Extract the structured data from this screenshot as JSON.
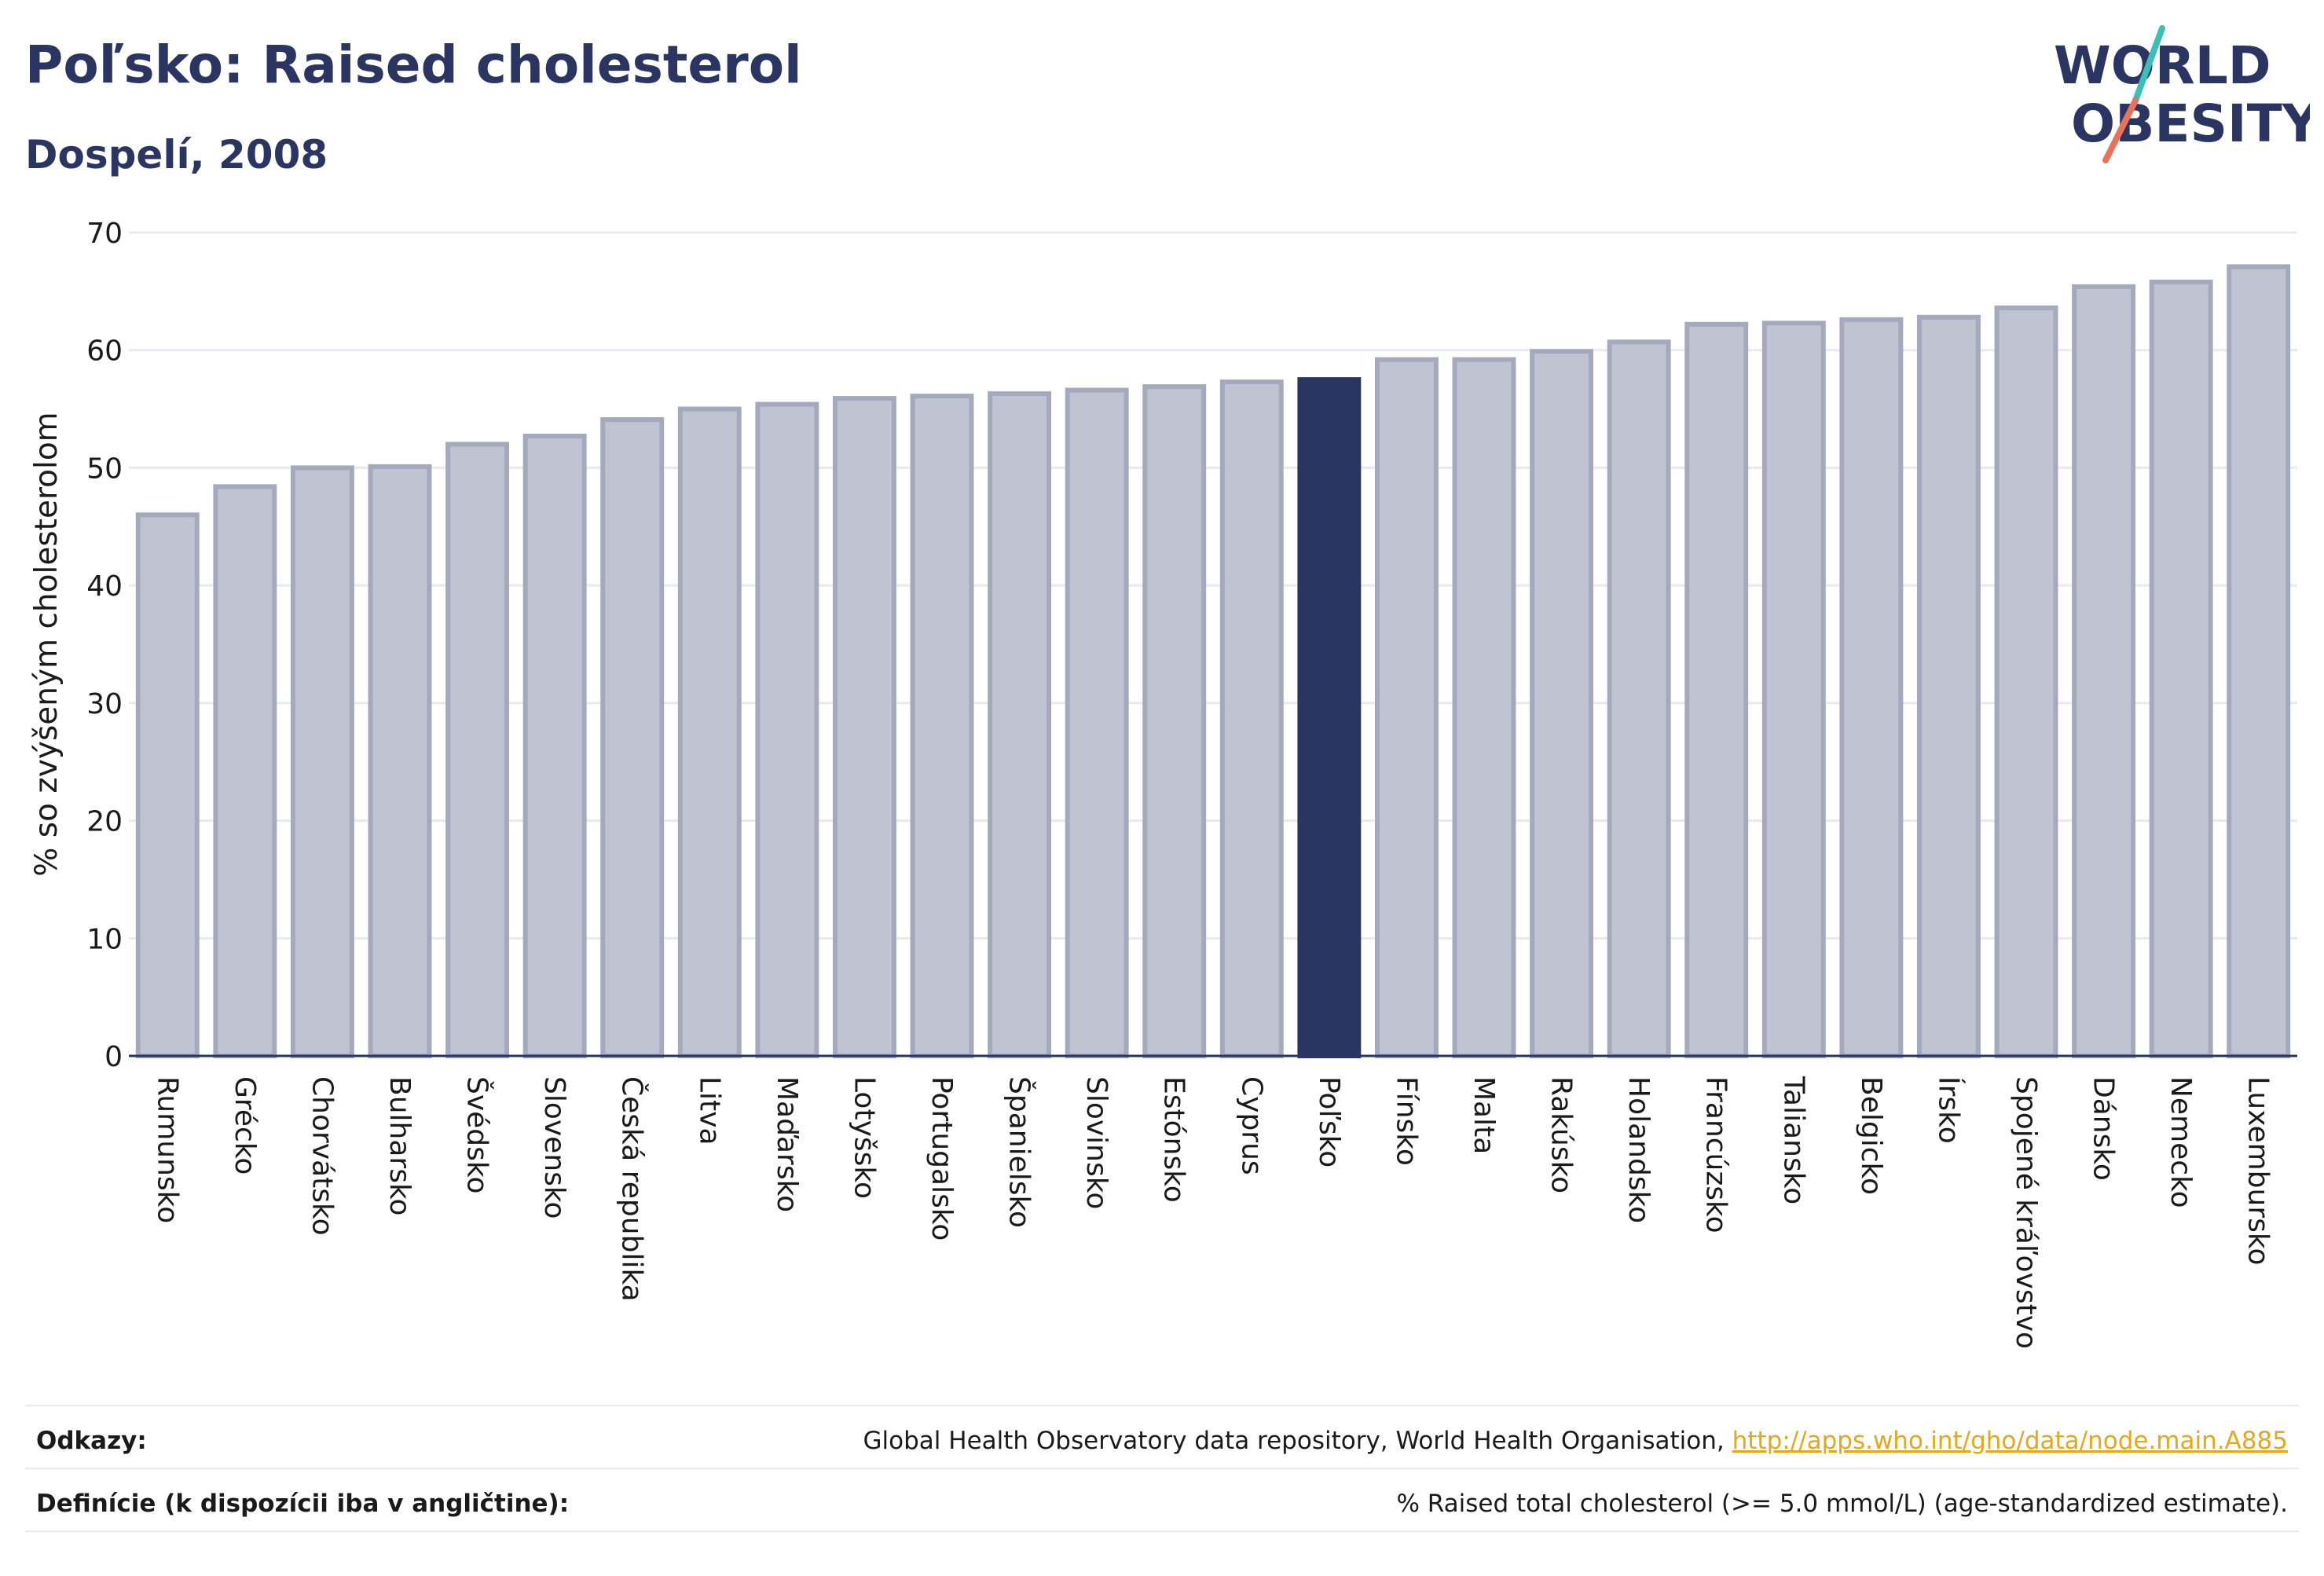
{
  "header": {
    "title": "Poľsko: Raised cholesterol",
    "subtitle": "Dospelí, 2008"
  },
  "logo": {
    "line1": "WORLD",
    "line2": "OBESITY"
  },
  "colors": {
    "bar": "#c0c3d1",
    "bar_stroke": "#a4a9bd",
    "highlight": "#2b3561",
    "grid": "#e8eaf1",
    "axis": "#2b3561",
    "title": "#2b3561",
    "link": "#e6a817"
  },
  "chart_data": {
    "type": "bar",
    "ylabel": "% so zvýšeným cholesterolom",
    "xlabel": "",
    "ylim": [
      0,
      70
    ],
    "yticks": [
      0,
      10,
      20,
      30,
      40,
      50,
      60,
      70
    ],
    "grid": true,
    "highlight": "Poľsko",
    "categories": [
      "Rumunsko",
      "Grécko",
      "Chorvátsko",
      "Bulharsko",
      "Švédsko",
      "Slovensko",
      "Česká republika",
      "Litva",
      "Maďarsko",
      "Lotyšsko",
      "Portugalsko",
      "Španielsko",
      "Slovinsko",
      "Estónsko",
      "Cyprus",
      "Poľsko",
      "Fínsko",
      "Malta",
      "Rakúsko",
      "Holandsko",
      "Francúzsko",
      "Taliansko",
      "Belgicko",
      "Írsko",
      "Spojené kráľovstvo",
      "Dánsko",
      "Nemecko",
      "Luxembursko"
    ],
    "values": [
      46.0,
      48.4,
      50.0,
      50.1,
      52.0,
      52.7,
      54.1,
      55.0,
      55.4,
      55.9,
      56.1,
      56.3,
      56.6,
      56.9,
      57.3,
      57.5,
      59.2,
      59.2,
      59.9,
      60.7,
      62.2,
      62.3,
      62.6,
      62.8,
      63.6,
      65.4,
      65.8,
      67.1
    ]
  },
  "footer": {
    "references_label": "Odkazy:",
    "references_text": "Global Health Observatory data repository, World Health Organisation, ",
    "references_link": "http://apps.who.int/gho/data/node.main.A885",
    "definitions_label": "Definície (k dispozícii iba v angličtine):",
    "definitions_text": "% Raised total cholesterol (>= 5.0 mmol/L) (age-standardized estimate)."
  }
}
